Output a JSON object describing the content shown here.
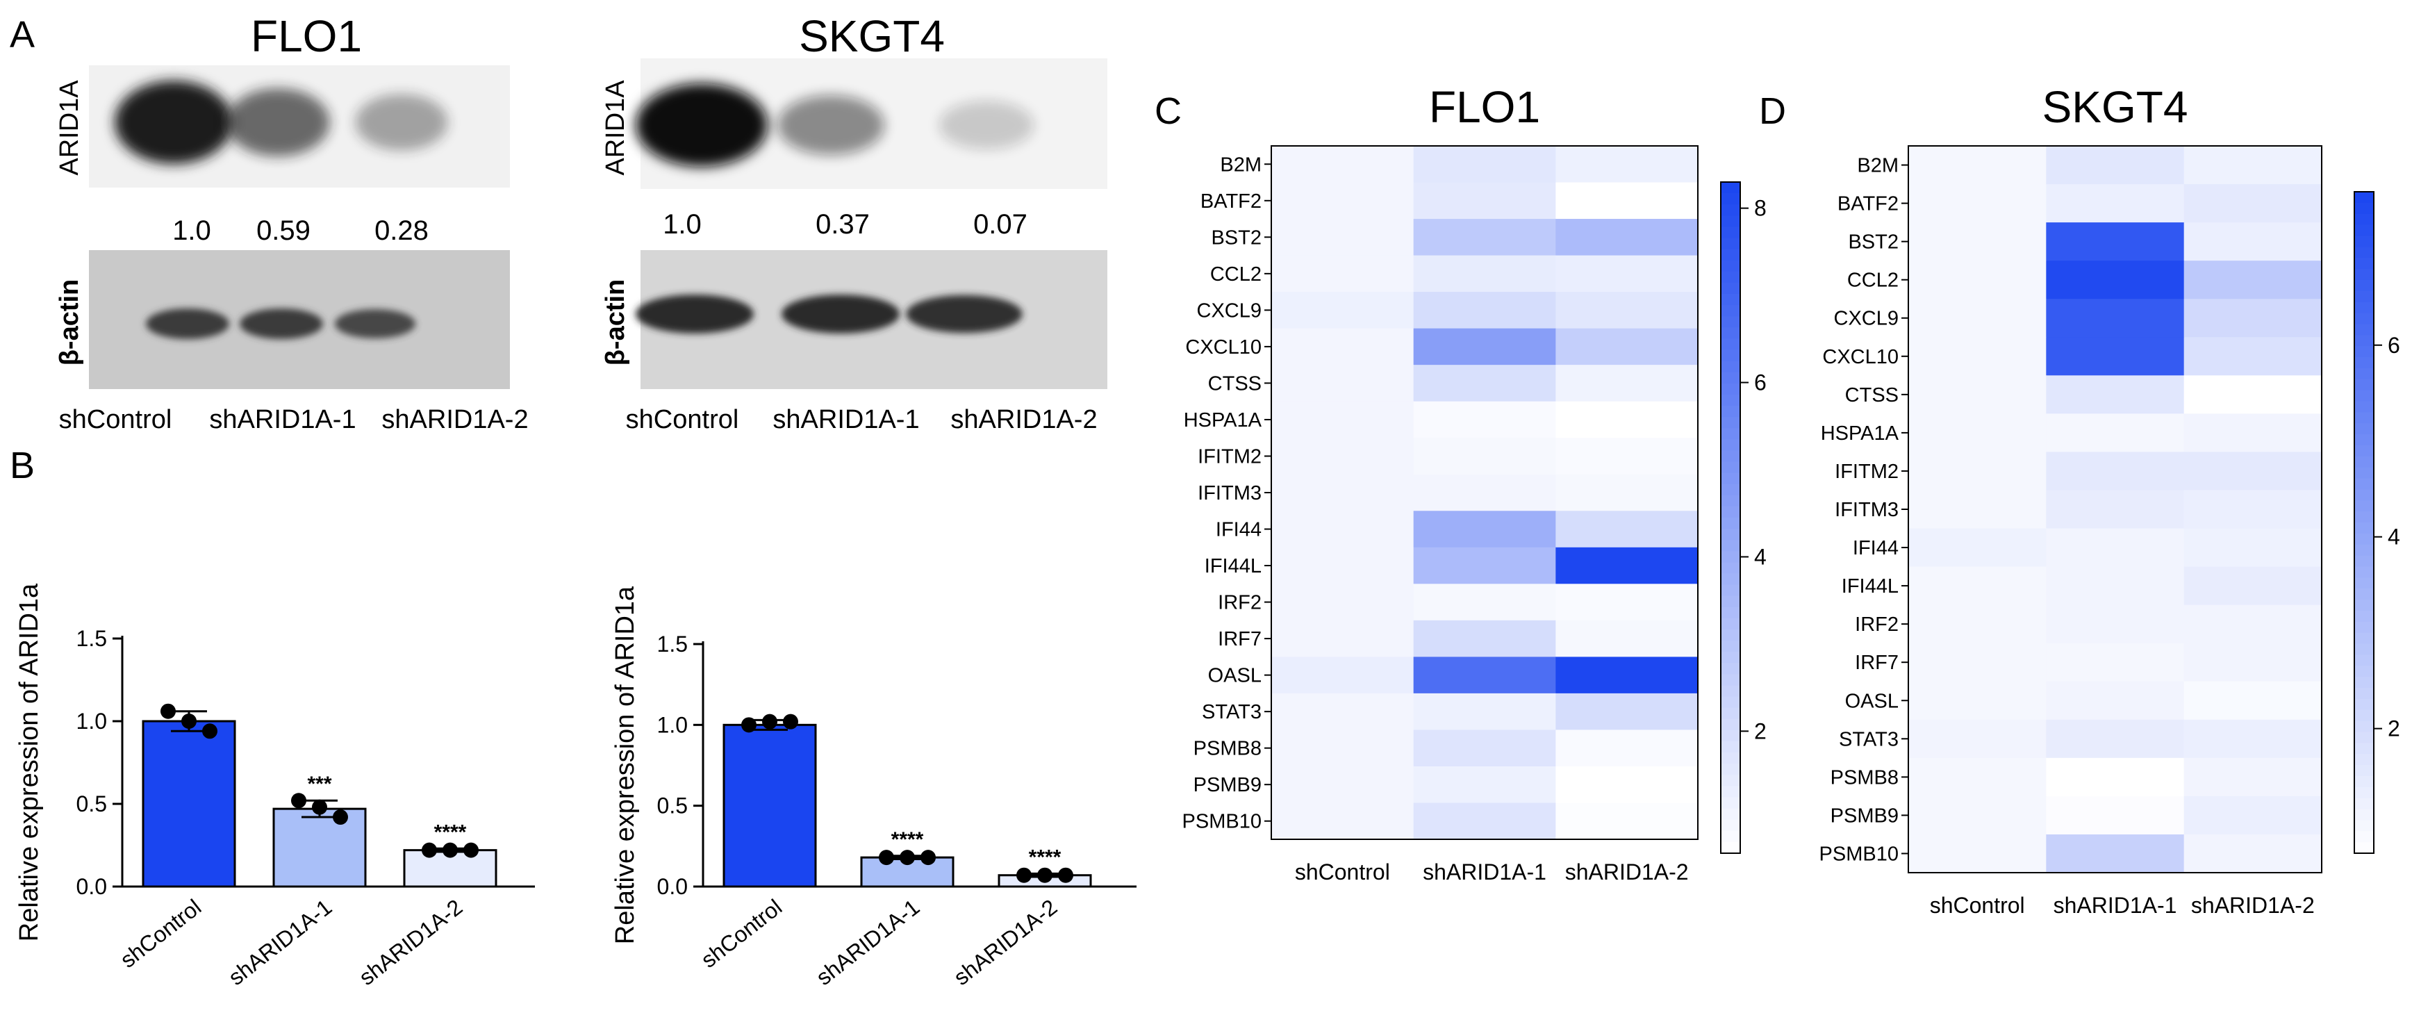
{
  "panels": {
    "A": {
      "letter": "A",
      "cell_lines": [
        {
          "name": "FLO1",
          "top_protein": "ARID1A",
          "bottom_protein": "β-actin",
          "quantification": [
            "1.0",
            "0.59",
            "0.28"
          ],
          "lanes": [
            "shControl",
            "shARID1A-1",
            "shARID1A-2"
          ],
          "band_intensity": {
            "arid1a": [
              1.0,
              0.59,
              0.28
            ],
            "actin": [
              1.0,
              1.0,
              0.9
            ]
          }
        },
        {
          "name": "SKGT4",
          "top_protein": "ARID1A",
          "bottom_protein": "β-actin",
          "quantification": [
            "1.0",
            "0.37",
            "0.07"
          ],
          "lanes": [
            "shControl",
            "shARID1A-1",
            "shARID1A-2"
          ],
          "band_intensity": {
            "arid1a": [
              1.0,
              0.37,
              0.07
            ],
            "actin": [
              1.0,
              1.0,
              0.95
            ]
          }
        }
      ]
    },
    "B": {
      "letter": "B"
    },
    "C": {
      "letter": "C"
    },
    "D": {
      "letter": "D"
    }
  },
  "colors": {
    "bar_control": "#1a45f0",
    "bar_sh1": "#a9bff8",
    "bar_sh2": "#e6ecfd",
    "heat_low": "#ffffff",
    "heat_high": "#1a45f0"
  },
  "chart_data": [
    {
      "type": "bar",
      "panel": "B-FLO1",
      "categories": [
        "shControl",
        "shARID1A-1",
        "shARID1A-2"
      ],
      "values": [
        1.0,
        0.47,
        0.22
      ],
      "errors": [
        0.06,
        0.05,
        0.01
      ],
      "points": [
        [
          1.06,
          1.0,
          0.94
        ],
        [
          0.52,
          0.48,
          0.42
        ],
        [
          0.22,
          0.22,
          0.22
        ]
      ],
      "significance": [
        "",
        "***",
        "****"
      ],
      "ylabel": "Relative expression of ARID1a",
      "ylim": [
        0,
        1.5
      ],
      "yticks": [
        "0.0",
        "0.5",
        "1.0",
        "1.5"
      ]
    },
    {
      "type": "bar",
      "panel": "B-SKGT4",
      "categories": [
        "shControl",
        "shARID1A-1",
        "shARID1A-2"
      ],
      "values": [
        1.0,
        0.18,
        0.07
      ],
      "errors": [
        0.03,
        0.01,
        0.01
      ],
      "points": [
        [
          1.0,
          1.02,
          1.02
        ],
        [
          0.18,
          0.18,
          0.18
        ],
        [
          0.07,
          0.07,
          0.07
        ]
      ],
      "significance": [
        "",
        "****",
        "****"
      ],
      "ylabel": "Relative expression of ARID1a",
      "ylim": [
        0,
        1.5
      ],
      "yticks": [
        "0.0",
        "0.5",
        "1.0",
        "1.5"
      ]
    },
    {
      "type": "heatmap",
      "panel": "C",
      "title": "FLO1",
      "rows": [
        "B2M",
        "BATF2",
        "BST2",
        "CCL2",
        "CXCL9",
        "CXCL10",
        "CTSS",
        "HSPA1A",
        "IFITM2",
        "IFITM3",
        "IFI44",
        "IFI44L",
        "IRF2",
        "IRF7",
        "OASL",
        "STAT3",
        "PSMB8",
        "PSMB9",
        "PSMB10"
      ],
      "columns": [
        "shControl",
        "shARID1A-1",
        "shARID1A-2"
      ],
      "values": [
        [
          1.0,
          1.6,
          1.2
        ],
        [
          1.0,
          1.5,
          0.6
        ],
        [
          1.0,
          2.8,
          3.4
        ],
        [
          1.0,
          1.4,
          1.3
        ],
        [
          1.2,
          2.0,
          1.6
        ],
        [
          1.0,
          4.6,
          2.6
        ],
        [
          1.0,
          1.9,
          1.1
        ],
        [
          1.0,
          0.8,
          0.6
        ],
        [
          1.0,
          0.9,
          0.8
        ],
        [
          1.0,
          1.0,
          0.9
        ],
        [
          1.0,
          3.9,
          2.0
        ],
        [
          1.0,
          3.4,
          8.2
        ],
        [
          1.0,
          0.9,
          0.8
        ],
        [
          1.0,
          2.0,
          0.9
        ],
        [
          1.3,
          6.6,
          8.2
        ],
        [
          1.0,
          1.2,
          2.0
        ],
        [
          1.0,
          1.7,
          0.8
        ],
        [
          1.0,
          1.2,
          0.6
        ],
        [
          1.0,
          1.7,
          0.7
        ]
      ],
      "range": [
        0.6,
        8.3
      ],
      "colorbar_ticks": [
        "2",
        "4",
        "6",
        "8"
      ],
      "colorbar_tick_values": [
        2,
        4,
        6,
        8
      ]
    },
    {
      "type": "heatmap",
      "panel": "D",
      "title": "SKGT4",
      "rows": [
        "B2M",
        "BATF2",
        "BST2",
        "CCL2",
        "CXCL9",
        "CXCL10",
        "CTSS",
        "HSPA1A",
        "IFITM2",
        "IFITM3",
        "IFI44",
        "IFI44L",
        "IRF2",
        "IRF7",
        "OASL",
        "STAT3",
        "PSMB8",
        "PSMB9",
        "PSMB10"
      ],
      "columns": [
        "shControl",
        "shARID1A-1",
        "shARID1A-2"
      ],
      "values": [
        [
          1.0,
          1.6,
          1.2
        ],
        [
          1.0,
          1.3,
          1.5
        ],
        [
          1.0,
          6.9,
          1.3
        ],
        [
          1.0,
          7.4,
          2.7
        ],
        [
          1.0,
          6.8,
          2.1
        ],
        [
          1.0,
          6.8,
          1.8
        ],
        [
          1.0,
          1.6,
          0.7
        ],
        [
          1.0,
          1.0,
          1.1
        ],
        [
          1.0,
          1.5,
          1.5
        ],
        [
          1.0,
          1.4,
          1.3
        ],
        [
          1.2,
          1.1,
          1.2
        ],
        [
          1.0,
          1.1,
          1.4
        ],
        [
          1.0,
          1.1,
          1.1
        ],
        [
          1.0,
          1.0,
          1.1
        ],
        [
          1.0,
          1.1,
          0.9
        ],
        [
          1.1,
          1.4,
          1.3
        ],
        [
          1.0,
          0.7,
          1.1
        ],
        [
          1.0,
          0.8,
          1.3
        ],
        [
          1.0,
          2.4,
          1.1
        ]
      ],
      "range": [
        0.7,
        7.6
      ],
      "colorbar_ticks": [
        "2",
        "4",
        "6"
      ],
      "colorbar_tick_values": [
        2,
        4,
        6
      ]
    }
  ]
}
